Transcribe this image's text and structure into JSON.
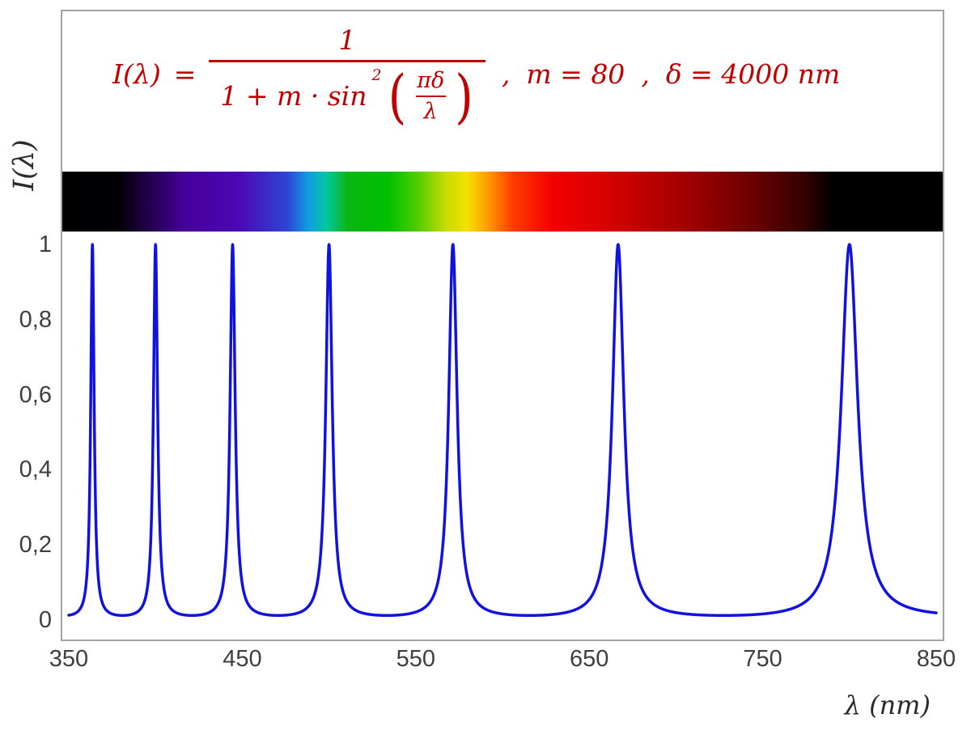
{
  "formula": {
    "lhs": "I(λ)",
    "equals": "=",
    "numerator": "1",
    "den_before_sup": "1 + m · sin",
    "sup": "2",
    "open_paren": "(",
    "inner_numerator": "πδ",
    "inner_denominator": "λ",
    "close_paren": ")",
    "comma1": ",",
    "param_m": "m = 80",
    "comma2": ",",
    "param_delta": "δ = 4000 nm",
    "color": "#c00000"
  },
  "axes": {
    "ylabel": "I(λ)",
    "xlabel": "λ  (nm)"
  },
  "chart_data": {
    "type": "line",
    "function": "I(lambda) = 1 / (1 + m * sin^2(pi*delta/lambda))",
    "params": {
      "m": 80,
      "delta_nm": 4000
    },
    "x_range_nm": [
      350,
      850
    ],
    "ylim": [
      0,
      1
    ],
    "x_ticks": [
      {
        "value": 350,
        "label": "350"
      },
      {
        "value": 450,
        "label": "450"
      },
      {
        "value": 550,
        "label": "550"
      },
      {
        "value": 650,
        "label": "650"
      },
      {
        "value": 750,
        "label": "750"
      },
      {
        "value": 850,
        "label": "850"
      }
    ],
    "y_ticks": [
      {
        "value": 0,
        "label": "0"
      },
      {
        "value": 0.2,
        "label": "0,2"
      },
      {
        "value": 0.4,
        "label": "0,4"
      },
      {
        "value": 0.6,
        "label": "0,6"
      },
      {
        "value": 0.8,
        "label": "0,8"
      },
      {
        "value": 1,
        "label": "1"
      }
    ],
    "peaks_nm": [
      363.64,
      400,
      444.44,
      500,
      571.43,
      666.67,
      800
    ],
    "peak_value": 1,
    "baseline_value": 0.0123,
    "line_color": "#1212e0",
    "grid": false,
    "legend": "none",
    "spectrum_bar": {
      "description": "visible-spectrum strip aligned to wavelength axis, black outside 380-785 nm",
      "stops": [
        {
          "nm": 350,
          "color": "#000000"
        },
        {
          "nm": 382,
          "color": "#020005"
        },
        {
          "nm": 396,
          "color": "#1e0040"
        },
        {
          "nm": 420,
          "color": "#46019b"
        },
        {
          "nm": 450,
          "color": "#4b07b4"
        },
        {
          "nm": 478,
          "color": "#2e46d4"
        },
        {
          "nm": 490,
          "color": "#0f9fe0"
        },
        {
          "nm": 500,
          "color": "#00c8a0"
        },
        {
          "nm": 512,
          "color": "#0ab614"
        },
        {
          "nm": 535,
          "color": "#00c000"
        },
        {
          "nm": 552,
          "color": "#52cc00"
        },
        {
          "nm": 568,
          "color": "#c8dc00"
        },
        {
          "nm": 580,
          "color": "#f5e000"
        },
        {
          "nm": 592,
          "color": "#ff9800"
        },
        {
          "nm": 606,
          "color": "#ff3c00"
        },
        {
          "nm": 628,
          "color": "#f40000"
        },
        {
          "nm": 662,
          "color": "#d40000"
        },
        {
          "nm": 702,
          "color": "#a40000"
        },
        {
          "nm": 742,
          "color": "#6c0000"
        },
        {
          "nm": 772,
          "color": "#340000"
        },
        {
          "nm": 788,
          "color": "#000000"
        },
        {
          "nm": 850,
          "color": "#000000"
        }
      ]
    }
  }
}
